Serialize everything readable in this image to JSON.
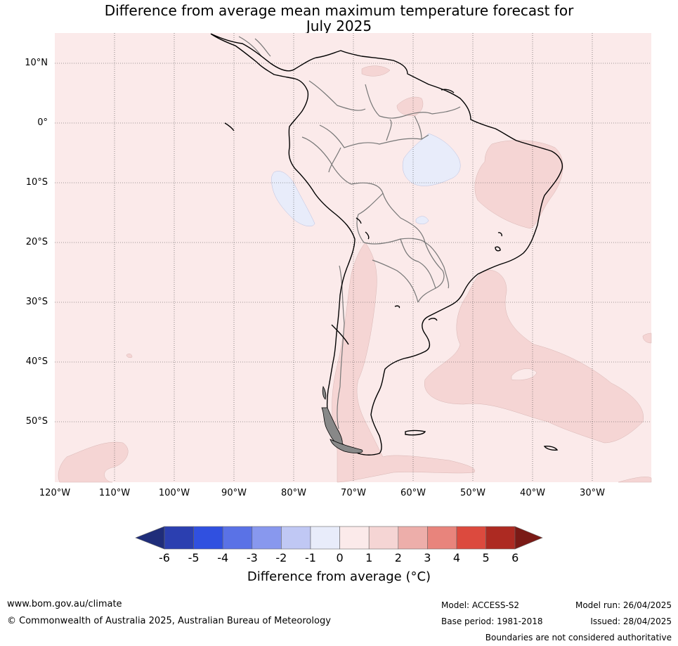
{
  "title_line1": "Difference from average mean maximum temperature forecast for",
  "title_line2": "July 2025",
  "latitude_labels": [
    "10°N",
    "0°",
    "10°S",
    "20°S",
    "30°S",
    "40°S",
    "50°S"
  ],
  "longitude_labels": [
    "120°W",
    "110°W",
    "100°W",
    "90°W",
    "80°W",
    "70°W",
    "60°W",
    "50°W",
    "40°W",
    "30°W"
  ],
  "colorbar": {
    "ticks": [
      "-6",
      "-5",
      "-4",
      "-3",
      "-2",
      "-1",
      "0",
      "1",
      "2",
      "3",
      "4",
      "5",
      "6"
    ],
    "colors": [
      "#1f2d7a",
      "#2b3fb0",
      "#3050e0",
      "#5a72e6",
      "#8898ee",
      "#c0c8f4",
      "#e8ecfa",
      "#fbeaea",
      "#f5d5d4",
      "#edaeaa",
      "#e8847c",
      "#dc4a3e",
      "#ad2a22",
      "#7a1a16"
    ],
    "title": "Difference from average (°C)"
  },
  "footer": {
    "url": "www.bom.gov.au/climate",
    "copyright": "© Commonwealth of Australia 2025, Australian Bureau of Meteorology",
    "model": "Model: ACCESS-S2",
    "base_period": "Base period: 1981-2018",
    "model_run": "Model run: 26/04/2025",
    "issued": "Issued: 28/04/2025",
    "boundaries": "Boundaries are not considered authoritative"
  }
}
